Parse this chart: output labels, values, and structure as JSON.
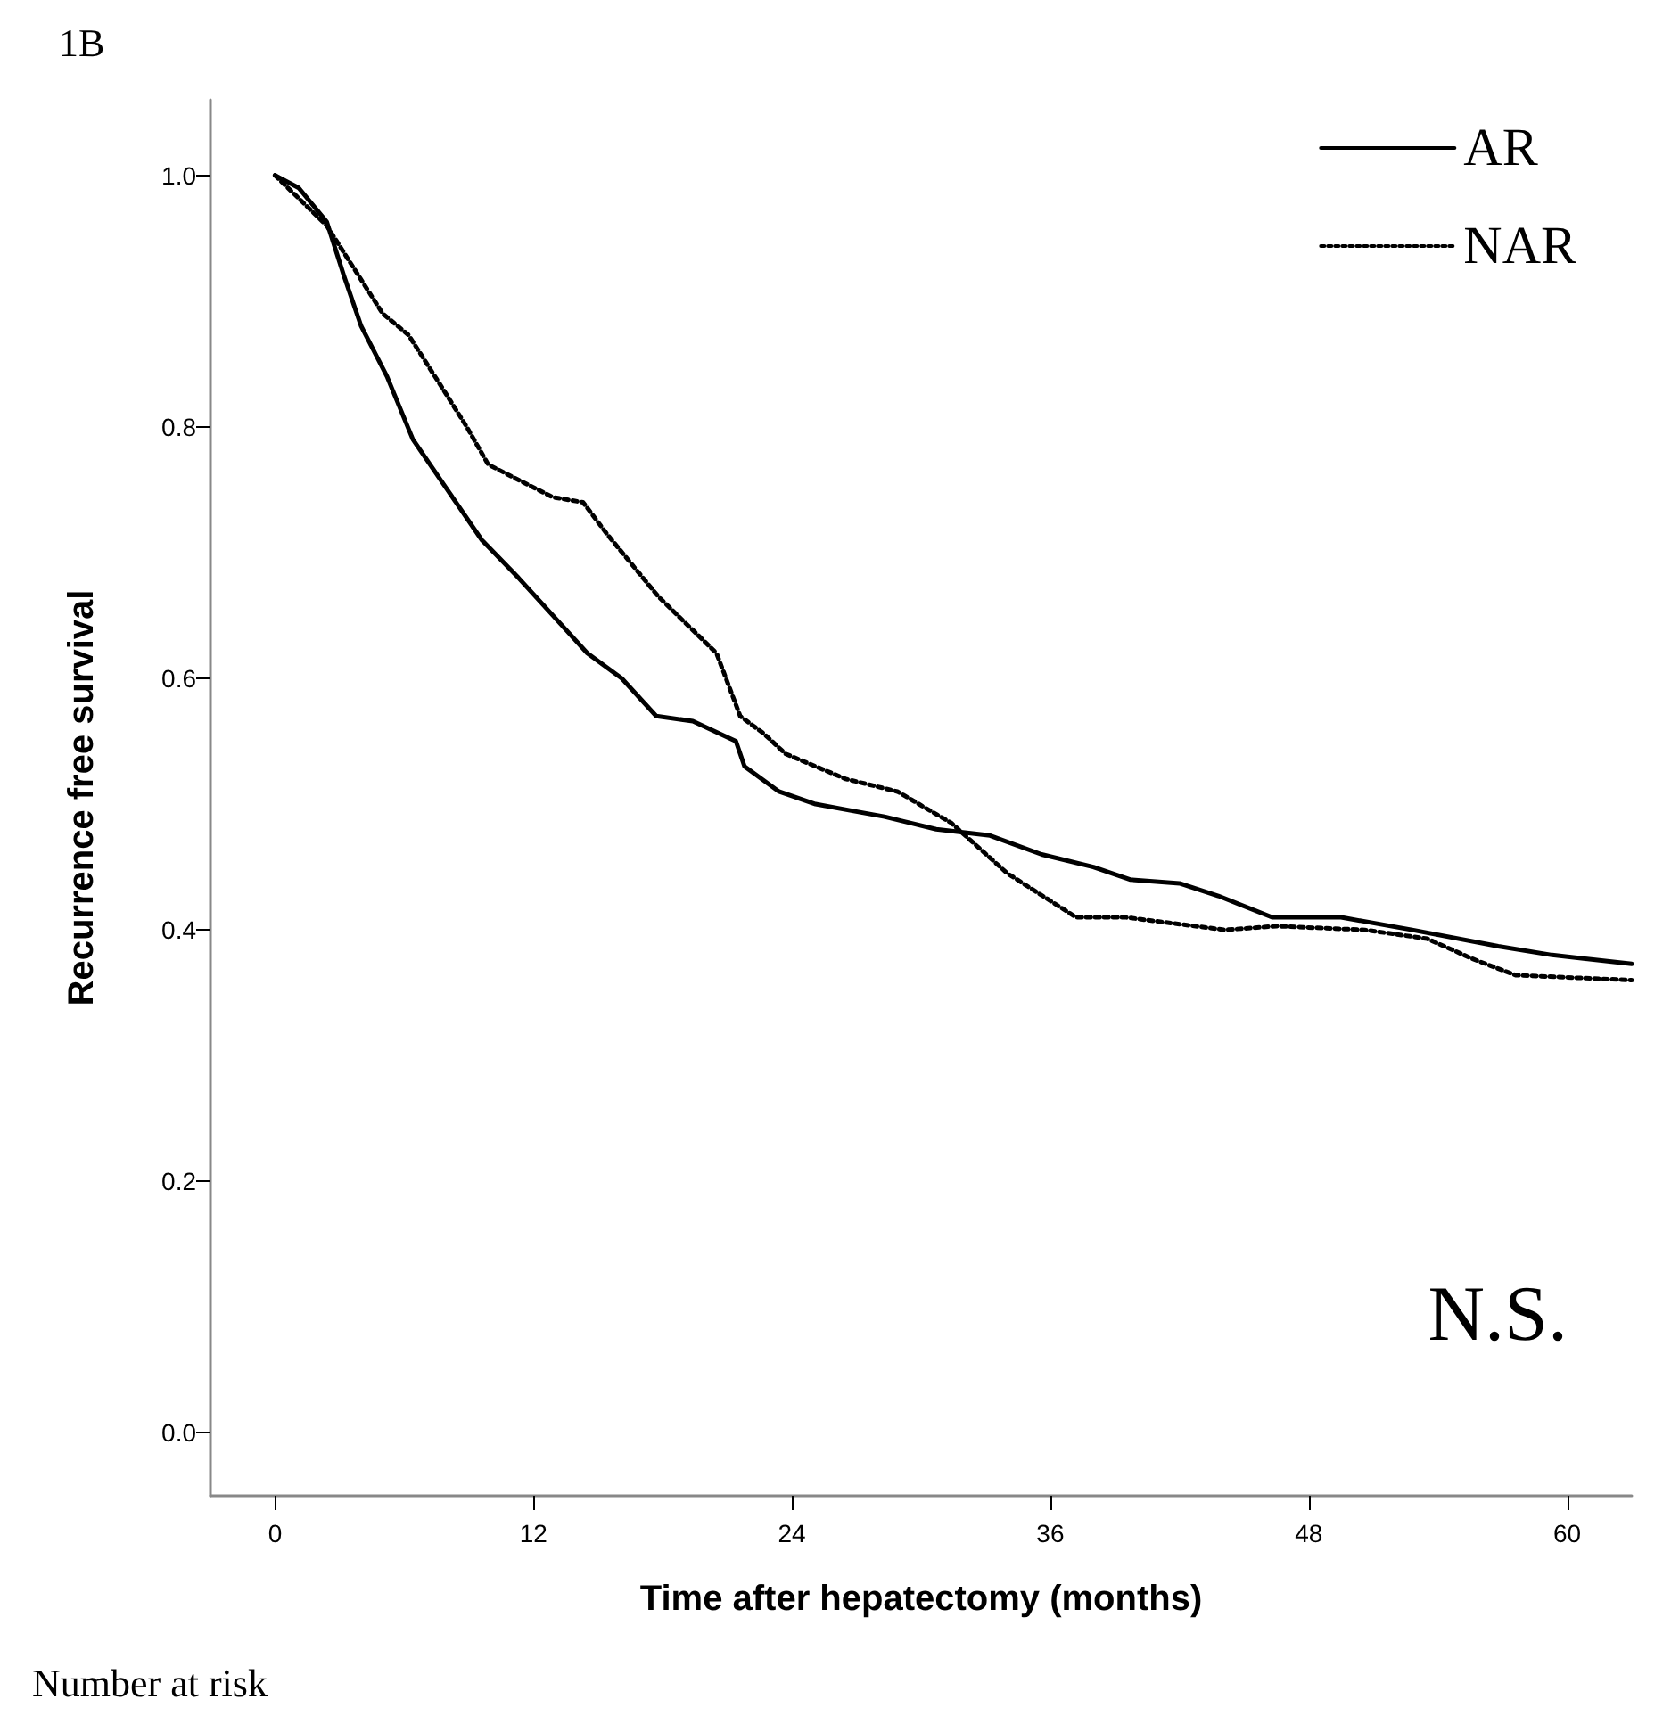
{
  "chart_data": {
    "type": "line",
    "title": "1B",
    "xlabel": "Time after hepatectomy (months)",
    "ylabel": "Recurrence free survival",
    "xlim": [
      -3,
      63
    ],
    "ylim": [
      -0.05,
      1.06
    ],
    "xticks": [
      0,
      12,
      24,
      36,
      48,
      60
    ],
    "yticks": [
      {
        "value": 0,
        "label": "0.0"
      },
      {
        "value": 0.2,
        "label": "0.2"
      },
      {
        "value": 0.4,
        "label": "0.4"
      },
      {
        "value": 0.6,
        "label": "0.6"
      },
      {
        "value": 0.8,
        "label": "0.8"
      },
      {
        "value": 1,
        "label": "1.0"
      }
    ],
    "grid": false,
    "legend": "top right",
    "series": [
      {
        "name": "AR",
        "color": "#000000",
        "line_style": "solid",
        "x": [
          0,
          1.1,
          2.4,
          3.2,
          4.0,
          5.2,
          6.4,
          8.0,
          9.6,
          11.3,
          12.9,
          14.5,
          16.1,
          17.7,
          19.4,
          21.4,
          21.8,
          23.4,
          25.1,
          26.7,
          28.3,
          30.7,
          33.2,
          35.6,
          38.0,
          39.7,
          42.0,
          43.8,
          46.3,
          49.5,
          52.8,
          56.8,
          59.3,
          63.0
        ],
        "values": [
          1.0,
          0.99,
          0.963,
          0.92,
          0.88,
          0.84,
          0.79,
          0.75,
          0.71,
          0.68,
          0.65,
          0.62,
          0.6,
          0.57,
          0.566,
          0.55,
          0.53,
          0.51,
          0.5,
          0.495,
          0.49,
          0.48,
          0.475,
          0.46,
          0.45,
          0.44,
          0.437,
          0.427,
          0.41,
          0.41,
          0.4,
          0.387,
          0.38,
          0.373
        ]
      },
      {
        "name": "NAR",
        "color": "#000000",
        "line_style": "dotted",
        "x": [
          0,
          2.4,
          5.0,
          6.2,
          7.8,
          8.9,
          9.9,
          12.9,
          14.3,
          15.4,
          17.8,
          20.5,
          21.6,
          22.7,
          23.7,
          26.5,
          28.9,
          31.4,
          34.0,
          37.2,
          39.5,
          44.1,
          46.5,
          50.6,
          53.5,
          55.6,
          57.6,
          63.0
        ],
        "values": [
          1.0,
          0.96,
          0.89,
          0.873,
          0.83,
          0.8,
          0.77,
          0.744,
          0.74,
          0.715,
          0.665,
          0.62,
          0.57,
          0.556,
          0.54,
          0.52,
          0.51,
          0.485,
          0.445,
          0.41,
          0.41,
          0.4,
          0.403,
          0.4,
          0.393,
          0.377,
          0.364,
          0.36
        ]
      }
    ],
    "annotations": [
      "N.S.",
      "Number at risk"
    ]
  }
}
